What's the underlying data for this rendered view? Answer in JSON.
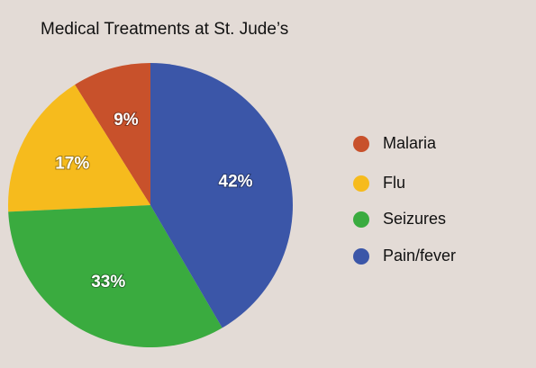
{
  "chart_data": {
    "type": "pie",
    "title": "Medical Treatments at St. Jude’s",
    "categories": [
      "Malaria",
      "Flu",
      "Seizures",
      "Pain/fever"
    ],
    "values": [
      9,
      17,
      33,
      42
    ],
    "value_labels": [
      "9%",
      "17%",
      "33%",
      "42%"
    ],
    "colors": [
      "#c8512b",
      "#f6bb1d",
      "#3aab3f",
      "#3b56a8"
    ],
    "legend": "right"
  }
}
